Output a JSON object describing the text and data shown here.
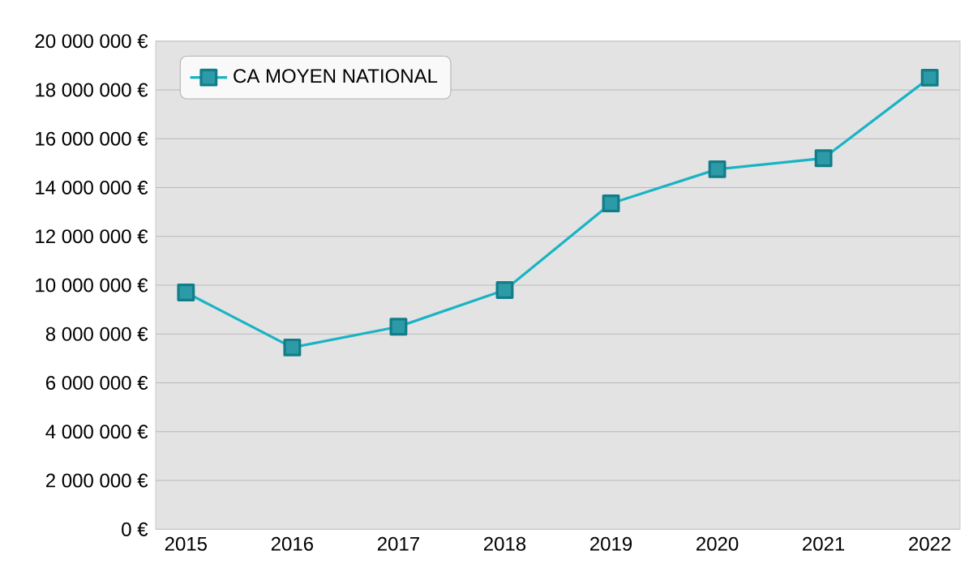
{
  "chart_data": {
    "type": "line",
    "categories": [
      "2015",
      "2016",
      "2017",
      "2018",
      "2019",
      "2020",
      "2021",
      "2022"
    ],
    "series": [
      {
        "name": "CA MOYEN NATIONAL",
        "color": "#1ab3c4",
        "values": [
          9700000,
          7450000,
          8300000,
          9800000,
          13350000,
          14750000,
          15200000,
          18500000
        ]
      }
    ],
    "ylim": [
      0,
      20000000
    ],
    "yticks": [
      {
        "value": 0,
        "label": "0 €"
      },
      {
        "value": 2000000,
        "label": "2 000 000 €"
      },
      {
        "value": 4000000,
        "label": "4 000 000 €"
      },
      {
        "value": 6000000,
        "label": "6 000 000 €"
      },
      {
        "value": 8000000,
        "label": "8 000 000 €"
      },
      {
        "value": 10000000,
        "label": "10 000 000 €"
      },
      {
        "value": 12000000,
        "label": "12 000 000 €"
      },
      {
        "value": 14000000,
        "label": "14 000 000 €"
      },
      {
        "value": 16000000,
        "label": "16 000 000 €"
      },
      {
        "value": 18000000,
        "label": "18 000 000 €"
      },
      {
        "value": 20000000,
        "label": "20 000 000 €"
      }
    ],
    "grid": "y",
    "legend": "top left",
    "marker": "square",
    "line_style": "solid"
  }
}
